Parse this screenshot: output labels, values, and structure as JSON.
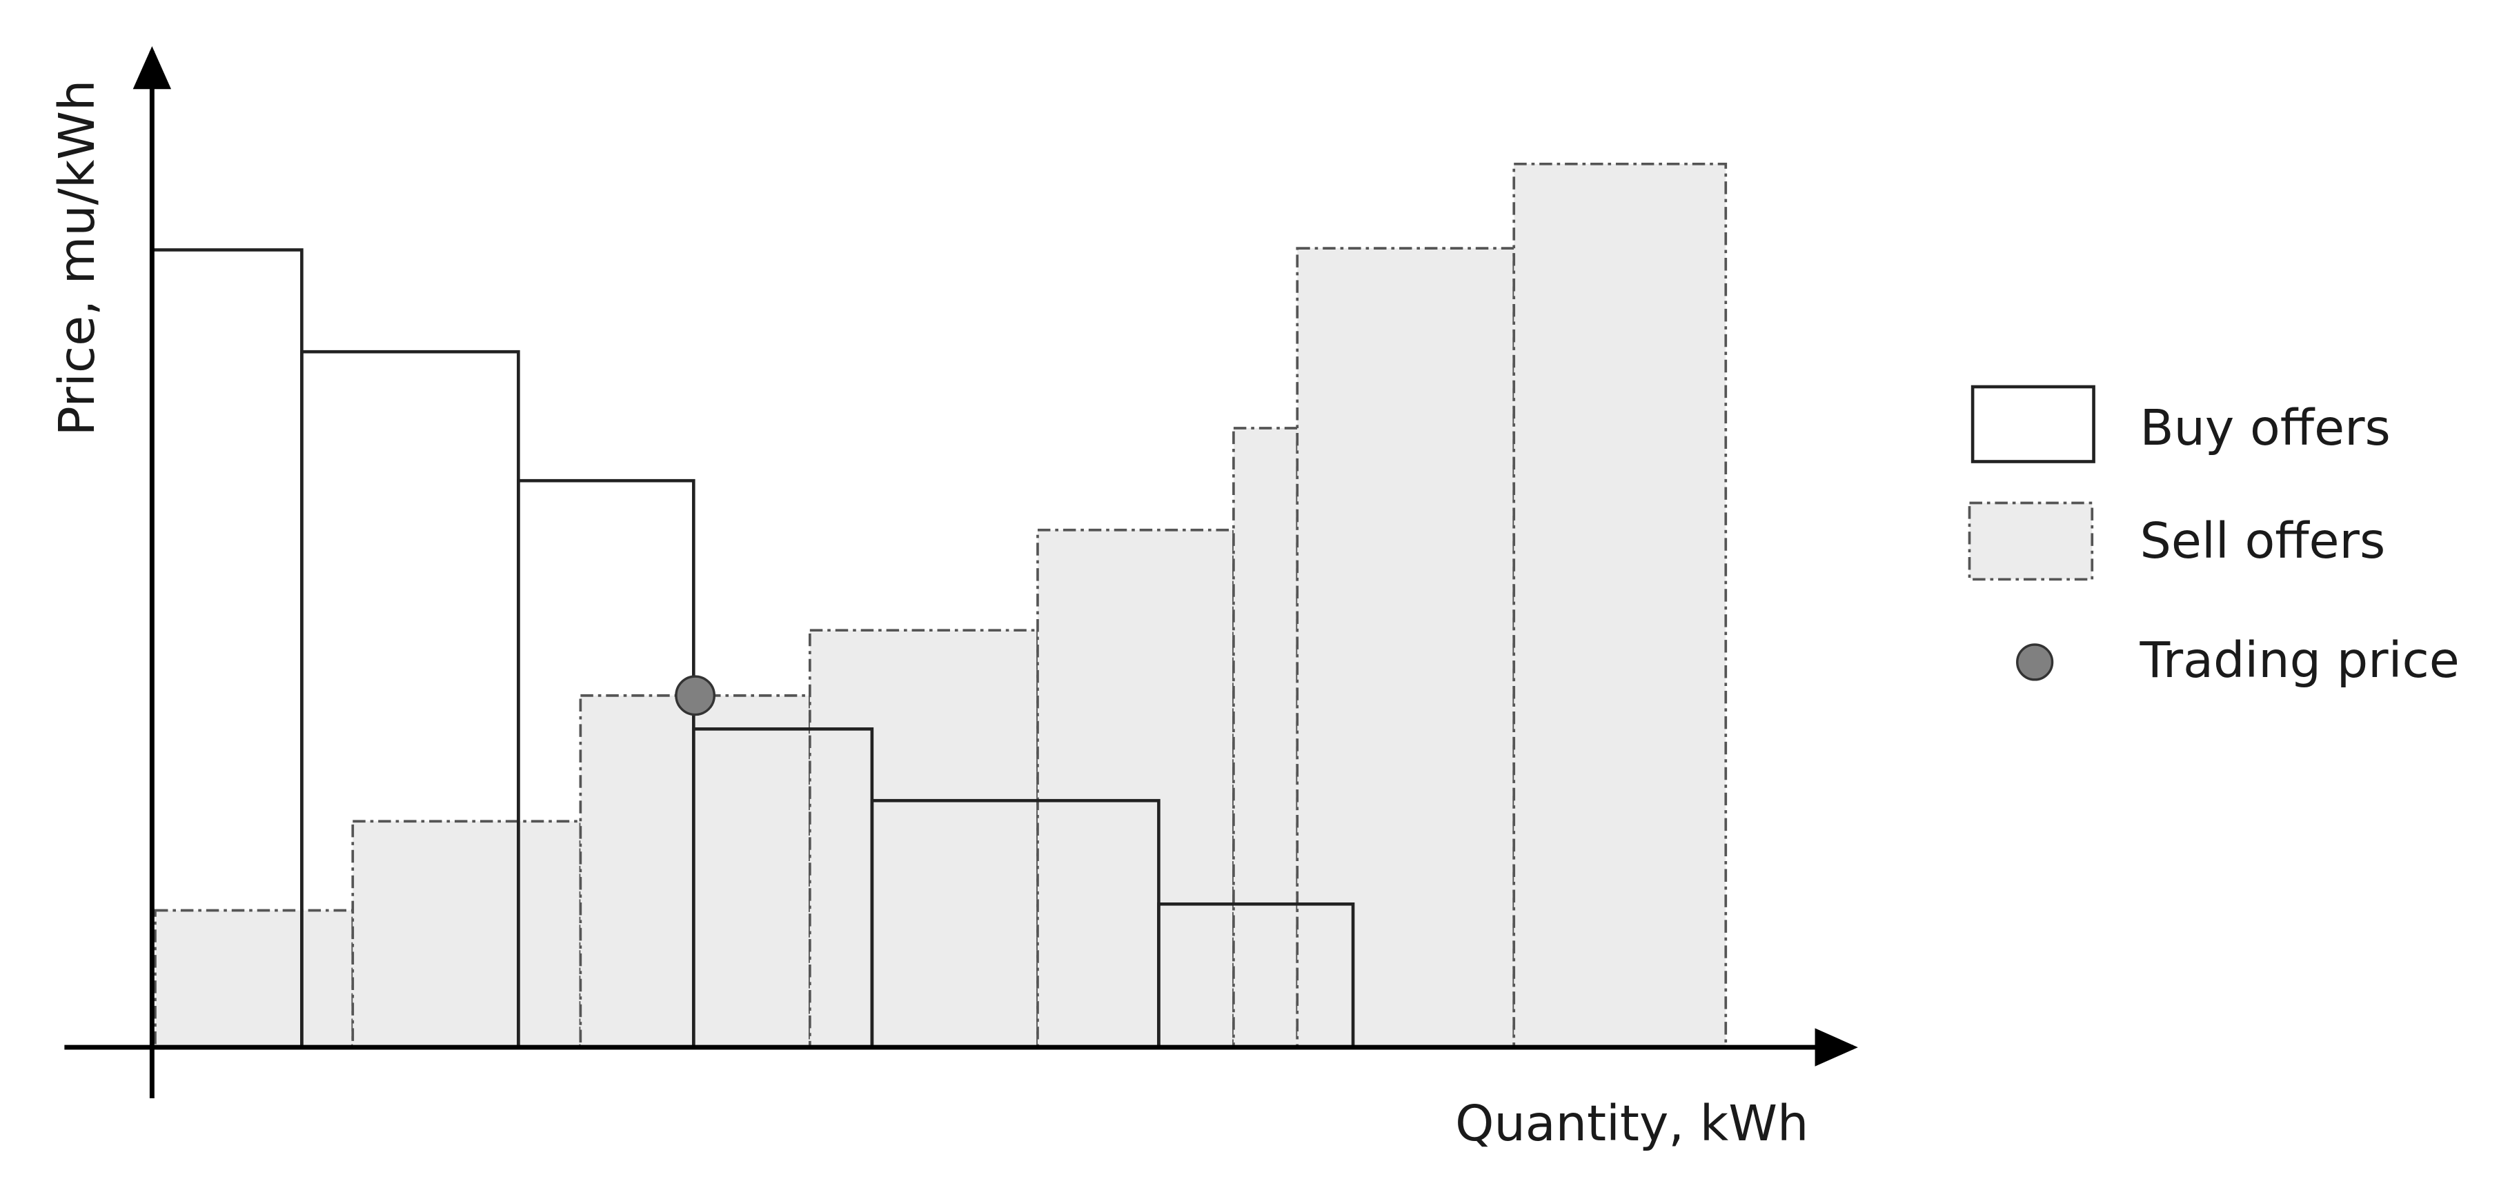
{
  "axes": {
    "y_label": "Price, mu/kWh",
    "x_label": "Quantity, kWh"
  },
  "legend": {
    "items": [
      {
        "label": "Buy offers"
      },
      {
        "label": "Sell offers"
      },
      {
        "label": "Trading price"
      }
    ]
  }
}
